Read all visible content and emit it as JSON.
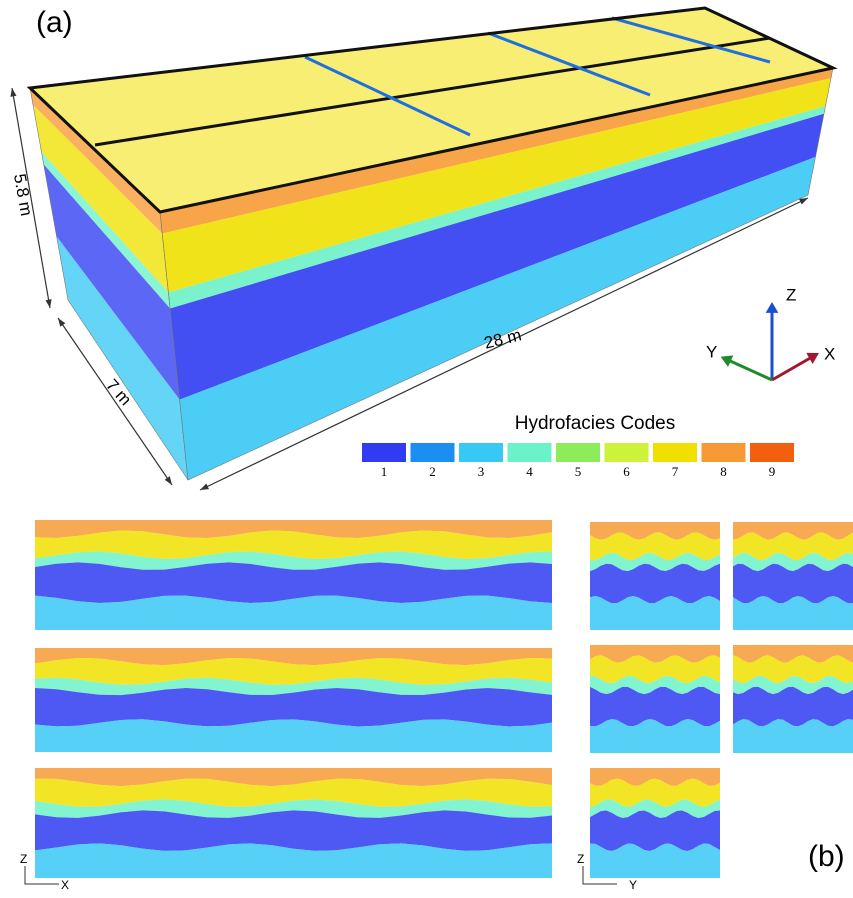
{
  "panel_a": {
    "label": "(a)",
    "dimensions": {
      "height": "5.8 m",
      "width": "7 m",
      "length": "28 m"
    },
    "axes": {
      "z": "Z",
      "x": "X",
      "y": "Y"
    }
  },
  "legend": {
    "title": "Hydrofacies Codes",
    "items": [
      {
        "code": 1,
        "color": "#2f3cf2"
      },
      {
        "code": 2,
        "color": "#1b8ef2"
      },
      {
        "code": 3,
        "color": "#38c8f5"
      },
      {
        "code": 4,
        "color": "#6cf2c8"
      },
      {
        "code": 5,
        "color": "#8cec5a"
      },
      {
        "code": 6,
        "color": "#cdf23a"
      },
      {
        "code": 7,
        "color": "#f0e000"
      },
      {
        "code": 8,
        "color": "#f79a35"
      },
      {
        "code": 9,
        "color": "#f2600f"
      }
    ]
  },
  "panel_b": {
    "label": "(b)",
    "xz_axes": {
      "z": "Z",
      "x": "X"
    },
    "yz_axes": {
      "z": "Z",
      "y": "Y"
    }
  }
}
